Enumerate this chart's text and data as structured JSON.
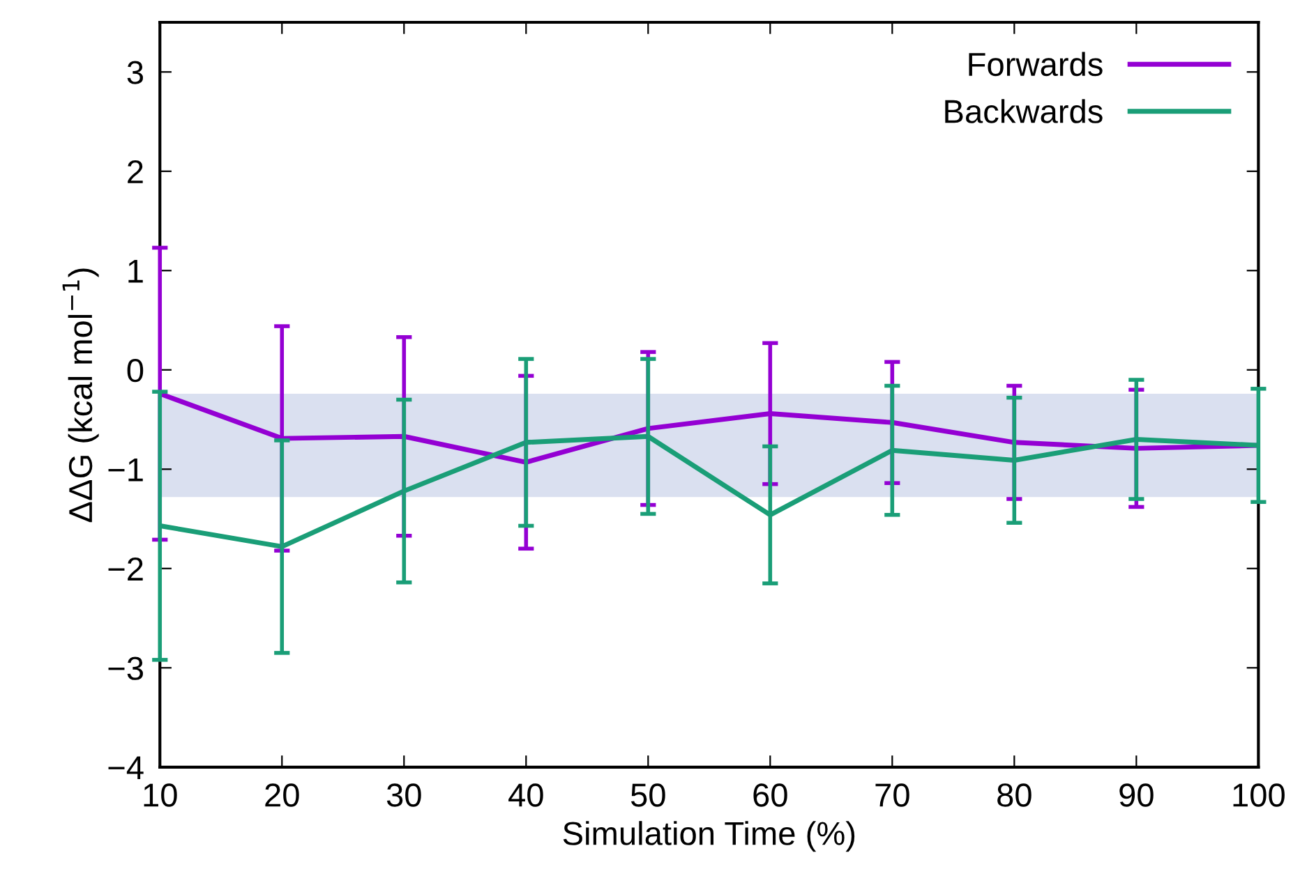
{
  "chart_data": {
    "type": "line",
    "xlabel": "Simulation Time (%)",
    "ylabel": "ΔΔG (kcal mol$^{−1}$)",
    "x": [
      10,
      20,
      30,
      40,
      50,
      60,
      70,
      80,
      90,
      100
    ],
    "series": [
      {
        "name": "Forwards",
        "color": "#9400d3",
        "values": [
          -0.24,
          -0.69,
          -0.67,
          -0.93,
          -0.59,
          -0.44,
          -0.53,
          -0.73,
          -0.79,
          -0.76
        ],
        "errors": [
          1.47,
          1.13,
          1.0,
          0.87,
          0.77,
          0.71,
          0.61,
          0.57,
          0.59,
          null
        ]
      },
      {
        "name": "Backwards",
        "color": "#1a9e77",
        "values": [
          -1.57,
          -1.78,
          -1.22,
          -0.73,
          -0.67,
          -1.46,
          -0.81,
          -0.91,
          -0.7,
          -0.76
        ],
        "errors": [
          1.35,
          1.07,
          0.92,
          0.84,
          0.78,
          0.69,
          0.65,
          0.63,
          0.6,
          0.57
        ]
      }
    ],
    "bands": [
      {
        "axis": "y",
        "from": -1.28,
        "to": -0.24,
        "color": "#dae0f0"
      }
    ],
    "xlim": [
      10,
      100
    ],
    "xticks": [
      10,
      20,
      30,
      40,
      50,
      60,
      70,
      80,
      90,
      100
    ],
    "ylim": [
      -4,
      3.5
    ],
    "yticks": [
      {
        "value": -4,
        "label": "−4"
      },
      {
        "value": -3,
        "label": "−3"
      },
      {
        "value": -2,
        "label": "−2"
      },
      {
        "value": -1,
        "label": "−1"
      },
      0,
      1,
      2,
      3
    ],
    "legend": "top right",
    "grid": false,
    "marker": "none",
    "line_style": "solid"
  }
}
